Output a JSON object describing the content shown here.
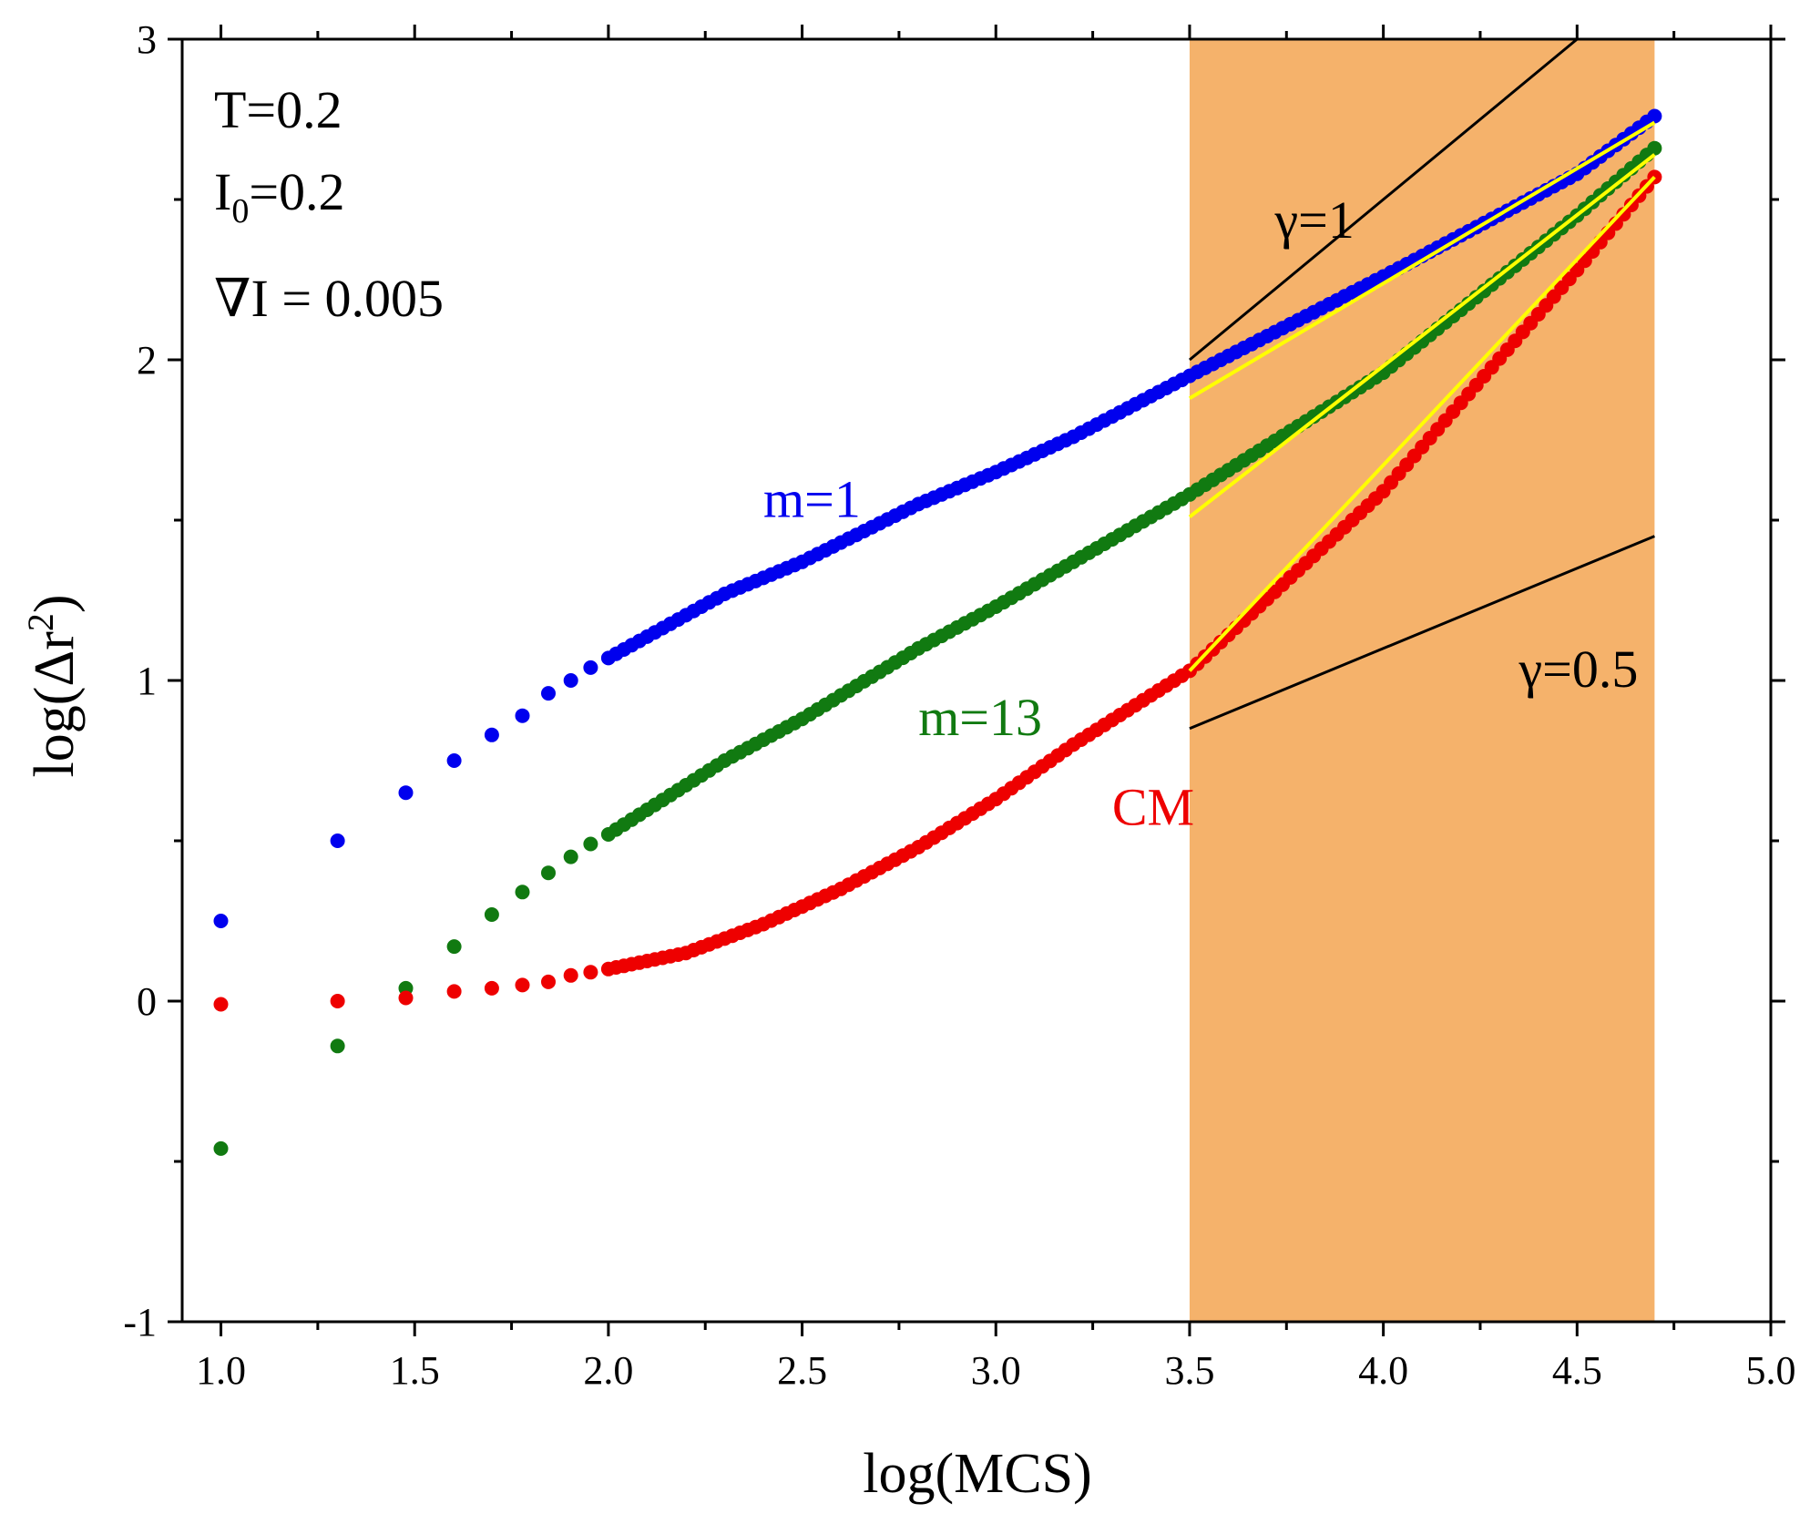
{
  "chart_data": {
    "type": "scatter",
    "title": "",
    "xlabel": "log(MCS)",
    "ylabel": "log(Δr²)",
    "xlim": [
      0.9,
      5.0
    ],
    "ylim": [
      -1,
      3
    ],
    "xticks": [
      1.0,
      1.5,
      2.0,
      2.5,
      3.0,
      3.5,
      4.0,
      4.5,
      5.0
    ],
    "xtick_labels": [
      "1.0",
      "1.5",
      "2.0",
      "2.5",
      "3.0",
      "3.5",
      "4.0",
      "4.5",
      "5.0"
    ],
    "yticks": [
      -1,
      0,
      1,
      2,
      3
    ],
    "ytick_labels": [
      "-1",
      "0",
      "1",
      "2",
      "3"
    ],
    "grid": false,
    "shaded_region": {
      "x": [
        3.5,
        4.7
      ],
      "color": "#f5b26b"
    },
    "annotations": {
      "temperature": "T=0.2",
      "intensity_main": "I",
      "intensity_sub": "0",
      "intensity_value": "=0.2",
      "gradient": "∇I = 0.005"
    },
    "colors": {
      "m1": "#0000ee",
      "m13": "#117a11",
      "cm": "#ee0000",
      "fit": "#ffff00",
      "ref": "#000000"
    },
    "series": [
      {
        "name": "m=1",
        "key": "m1",
        "anchors_x": [
          1.0,
          1.301,
          1.477,
          1.602,
          1.699,
          1.778,
          1.845,
          1.903,
          1.954,
          2.0,
          2.3,
          2.5,
          2.8,
          3.0,
          3.2,
          3.5,
          4.0,
          4.5,
          4.7
        ],
        "anchors_y": [
          0.25,
          0.5,
          0.65,
          0.75,
          0.83,
          0.89,
          0.96,
          1.0,
          1.04,
          1.07,
          1.27,
          1.37,
          1.55,
          1.65,
          1.76,
          1.95,
          2.26,
          2.58,
          2.76
        ]
      },
      {
        "name": "m=13",
        "key": "m13",
        "anchors_x": [
          1.0,
          1.301,
          1.477,
          1.602,
          1.699,
          1.778,
          1.845,
          1.903,
          1.954,
          2.0,
          2.3,
          2.5,
          2.8,
          3.0,
          3.2,
          3.5,
          4.0,
          4.5,
          4.7
        ],
        "anchors_y": [
          -0.46,
          -0.14,
          0.04,
          0.17,
          0.27,
          0.34,
          0.4,
          0.45,
          0.49,
          0.52,
          0.75,
          0.88,
          1.1,
          1.23,
          1.37,
          1.58,
          1.96,
          2.45,
          2.66
        ]
      },
      {
        "name": "CM",
        "key": "cm",
        "anchors_x": [
          1.0,
          1.301,
          1.477,
          1.602,
          1.699,
          1.778,
          1.845,
          1.903,
          1.954,
          2.0,
          2.2,
          2.4,
          2.6,
          2.8,
          3.0,
          3.2,
          3.5,
          4.0,
          4.5,
          4.7
        ],
        "anchors_y": [
          -0.01,
          0.0,
          0.01,
          0.03,
          0.04,
          0.05,
          0.06,
          0.08,
          0.09,
          0.1,
          0.15,
          0.24,
          0.35,
          0.48,
          0.63,
          0.8,
          1.03,
          1.59,
          2.28,
          2.57
        ]
      }
    ],
    "fits": [
      {
        "series": "m1",
        "x": [
          3.5,
          4.7
        ],
        "y": [
          1.88,
          2.74
        ]
      },
      {
        "series": "m13",
        "x": [
          3.5,
          4.7
        ],
        "y": [
          1.51,
          2.64
        ]
      },
      {
        "series": "cm",
        "x": [
          3.5,
          4.7
        ],
        "y": [
          1.03,
          2.57
        ]
      }
    ],
    "reference_lines": [
      {
        "label": "γ=1",
        "x": [
          3.5,
          4.5
        ],
        "y": [
          2.0,
          3.0
        ]
      },
      {
        "label": "γ=0.5",
        "x": [
          3.5,
          4.7
        ],
        "y": [
          0.85,
          1.45
        ]
      }
    ],
    "series_labels": [
      {
        "text": "m=1",
        "key": "m1",
        "x": 2.4,
        "y": 1.51
      },
      {
        "text": "m=13",
        "key": "m13",
        "x": 2.8,
        "y": 0.83
      },
      {
        "text": "CM",
        "key": "cm",
        "x": 3.3,
        "y": 0.55
      },
      {
        "text": "γ=1",
        "key": "ref",
        "x": 3.72,
        "y": 2.38
      },
      {
        "text": "γ=0.5",
        "key": "ref",
        "x": 4.35,
        "y": 0.98
      }
    ]
  }
}
